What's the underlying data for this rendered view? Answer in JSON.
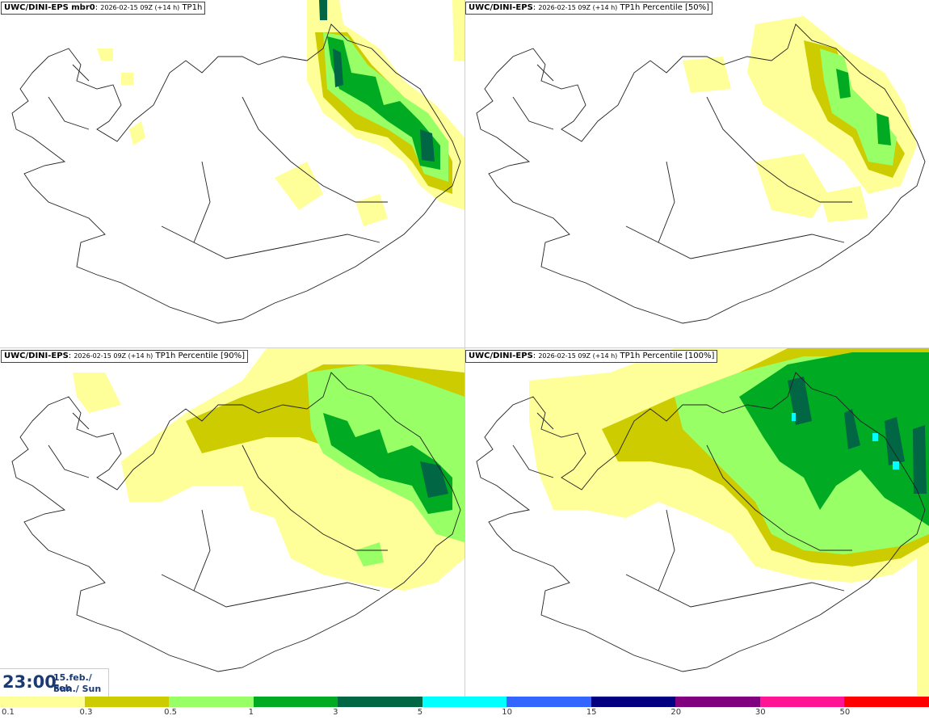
{
  "panels": [
    {
      "model": "UWC/DINI-EPS mbr0",
      "run": "2026-02-15 09Z (+14 h)",
      "field": "TP1h"
    },
    {
      "model": "UWC/DINI-EPS",
      "run": "2026-02-15 09Z (+14 h)",
      "field": "TP1h Percentile [50%]"
    },
    {
      "model": "UWC/DINI-EPS",
      "run": "2026-02-15 09Z (+14 h)",
      "field": "TP1h Percentile [90%]"
    },
    {
      "model": "UWC/DINI-EPS",
      "run": "2026-02-15 09Z (+14 h)",
      "field": "TP1h Percentile [100%]"
    }
  ],
  "valid_time": {
    "time": "23:00",
    "date": "15.feb./ Feb",
    "day": "Sun./ Sun"
  },
  "colorbar": {
    "labels": [
      "0.1",
      "0.3",
      "0.5",
      "1",
      "3",
      "5",
      "10",
      "15",
      "20",
      "30",
      "50"
    ],
    "colors": [
      "#ffff99",
      "#cccc00",
      "#99ff66",
      "#00aa22",
      "#006644",
      "#00ffff",
      "#3366ff",
      "#000080",
      "#800080",
      "#ff1493",
      "#ff0000"
    ]
  },
  "precip_colors": {
    "light": "#ffff99",
    "low": "#cccc00",
    "moderate": "#99ff66",
    "heavy": "#00aa22",
    "very_heavy": "#006644",
    "extreme": "#00ffff"
  }
}
